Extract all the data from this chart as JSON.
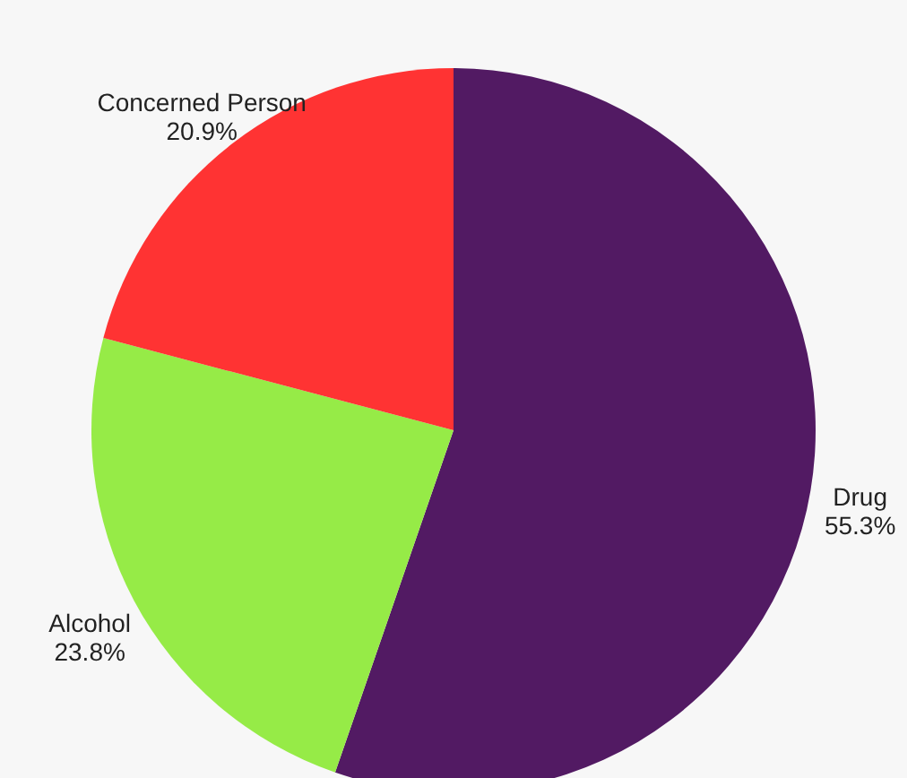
{
  "chart_data": {
    "type": "pie",
    "categories": [
      "Drug",
      "Alcohol",
      "Concerned Person"
    ],
    "values": [
      55.3,
      23.8,
      20.9
    ],
    "value_labels": [
      "55.3%",
      "23.8%",
      "20.9%"
    ],
    "colors": [
      "#521a63",
      "#96eb47",
      "#ff3333"
    ]
  }
}
